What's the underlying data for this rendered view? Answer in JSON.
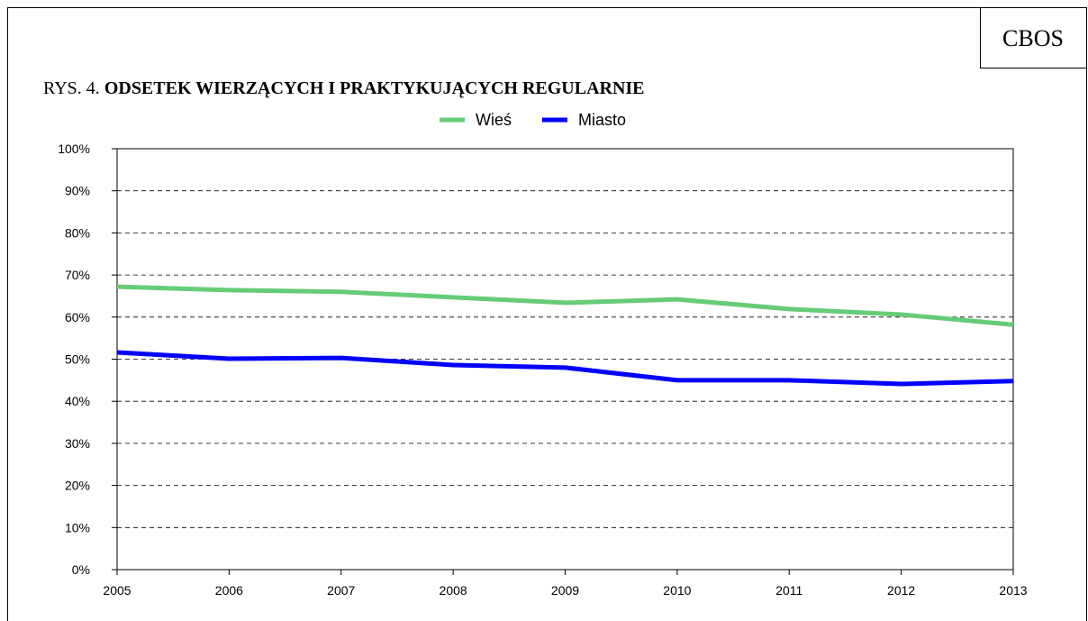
{
  "badge": "CBOS",
  "chart_data": {
    "type": "line",
    "figure_label": "RYS. 4.",
    "title": "ODSETEK WIERZĄCYCH I PRAKTYKUJĄCYCH REGULARNIE",
    "x": [
      2005,
      2006,
      2007,
      2008,
      2009,
      2010,
      2011,
      2012,
      2013
    ],
    "xlim": [
      2005,
      2013
    ],
    "xticks": [
      2005,
      2006,
      2007,
      2008,
      2009,
      2010,
      2011,
      2012,
      2013
    ],
    "ylim": [
      0,
      100
    ],
    "yticks": [
      {
        "value": 0,
        "label": "0%"
      },
      {
        "value": 10,
        "label": "10%"
      },
      {
        "value": 20,
        "label": "20%"
      },
      {
        "value": 30,
        "label": "30%"
      },
      {
        "value": 40,
        "label": "40%"
      },
      {
        "value": 50,
        "label": "50%"
      },
      {
        "value": 60,
        "label": "60%"
      },
      {
        "value": 70,
        "label": "70%"
      },
      {
        "value": 80,
        "label": "80%"
      },
      {
        "value": 90,
        "label": "90%"
      },
      {
        "value": 100,
        "label": "100%"
      }
    ],
    "grid": true,
    "legend": "top",
    "series": [
      {
        "name": "Wieś",
        "color": "#66cc77",
        "values": [
          67.2,
          66.4,
          66.0,
          64.7,
          63.4,
          64.2,
          61.9,
          60.6,
          58.2
        ]
      },
      {
        "name": "Miasto",
        "color": "#0000ff",
        "values": [
          51.6,
          50.1,
          50.3,
          48.6,
          48.0,
          45.0,
          45.0,
          44.1,
          44.8
        ]
      }
    ]
  }
}
